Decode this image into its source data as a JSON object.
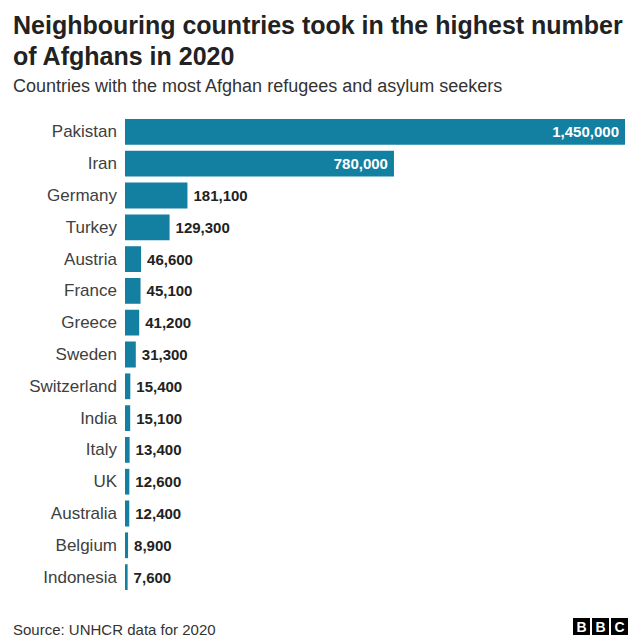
{
  "chart_data": {
    "type": "bar",
    "orientation": "horizontal",
    "title": "Neighbouring countries took in the highest number of Afghans in 2020",
    "subtitle": "Countries with the most Afghan refugees and asylum seekers",
    "source": "Source: UNHCR data for 2020",
    "logo": "BBC",
    "categories": [
      "Pakistan",
      "Iran",
      "Germany",
      "Turkey",
      "Austria",
      "France",
      "Greece",
      "Sweden",
      "Switzerland",
      "India",
      "Italy",
      "UK",
      "Australia",
      "Belgium",
      "Indonesia"
    ],
    "values": [
      1450000,
      780000,
      181100,
      129300,
      46600,
      45100,
      41200,
      31300,
      15400,
      15100,
      13400,
      12600,
      12400,
      8900,
      7600
    ],
    "value_labels": [
      "1,450,000",
      "780,000",
      "181,100",
      "129,300",
      "46,600",
      "45,100",
      "41,200",
      "31,300",
      "15,400",
      "15,100",
      "13,400",
      "12,600",
      "12,400",
      "8,900",
      "7,600"
    ],
    "color": "#1380a1",
    "xlim": [
      0,
      1450000
    ],
    "grid": false,
    "data_labels": true,
    "tick_labels": "y"
  }
}
